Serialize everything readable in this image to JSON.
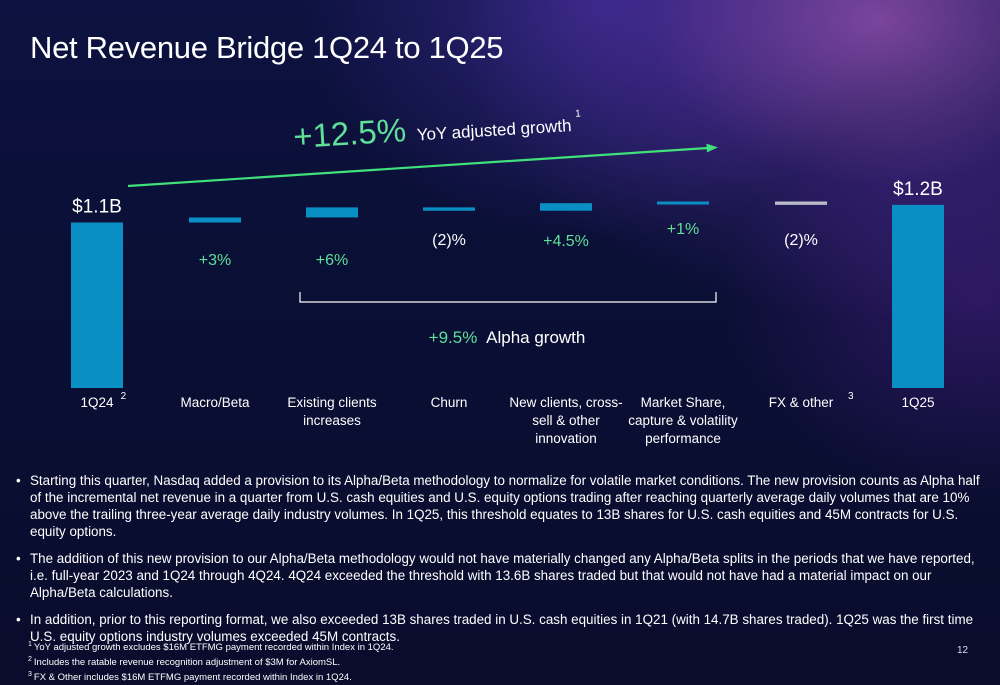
{
  "title": "Net Revenue Bridge 1Q24 to 1Q25",
  "growth": {
    "value_text": "+12.5%",
    "label_text": "YoY adjusted growth",
    "footnote_ref": "1"
  },
  "alpha": {
    "value_text": "+9.5%",
    "label_text": "Alpha growth"
  },
  "colors": {
    "bar": "#0a8fc5",
    "accent_green": "#40e07a",
    "green_text": "#5fdf97",
    "fx_bar": "#b9bcc8"
  },
  "chart_data": {
    "type": "bar",
    "subtype": "waterfall",
    "categories": [
      "1Q24",
      "Macro/Beta",
      "Existing clients increases",
      "Churn",
      "New clients, cross-sell & other innovation",
      "Market Share, capture & volatility performance",
      "FX & other",
      "1Q25"
    ],
    "percent_changes": [
      null,
      3,
      6,
      -2,
      4.5,
      1,
      -2,
      null
    ],
    "bars": [
      {
        "category": "1Q24",
        "category_lines": [
          "1Q24"
        ],
        "footnote": "2",
        "type": "total",
        "label": "$1.1B",
        "level_start": 0,
        "level_end": 100
      },
      {
        "category": "Macro/Beta",
        "category_lines": [
          "Macro/Beta"
        ],
        "footnote": "",
        "type": "delta",
        "label": "+3%",
        "level_start": 100,
        "level_end": 103
      },
      {
        "category": "Existing clients increases",
        "category_lines": [
          "Existing clients",
          "increases"
        ],
        "footnote": "",
        "type": "delta",
        "label": "+6%",
        "level_start": 103,
        "level_end": 109
      },
      {
        "category": "Churn",
        "category_lines": [
          "Churn"
        ],
        "footnote": "",
        "type": "delta",
        "label": "(2)%",
        "level_start": 109,
        "level_end": 107
      },
      {
        "category": "New clients, cross-sell & other innovation",
        "category_lines": [
          "New clients, cross-",
          "sell & other",
          "innovation"
        ],
        "footnote": "",
        "type": "delta",
        "label": "+4.5%",
        "level_start": 107,
        "level_end": 111.5
      },
      {
        "category": "Market Share, capture & volatility performance",
        "category_lines": [
          "Market Share,",
          "capture & volatility",
          "performance"
        ],
        "footnote": "",
        "type": "delta",
        "label": "+1%",
        "level_start": 111.5,
        "level_end": 112.5
      },
      {
        "category": "FX & other",
        "category_lines": [
          "FX & other"
        ],
        "footnote": "3",
        "type": "delta",
        "label": "(2)%",
        "level_start": 112.5,
        "level_end": 110.5
      },
      {
        "category": "1Q25",
        "category_lines": [
          "1Q25"
        ],
        "footnote": "",
        "type": "total",
        "label": "$1.2B",
        "level_start": 0,
        "level_end": 110.5
      }
    ],
    "total_labels": {
      "start": "$1.1B",
      "end": "$1.2B"
    },
    "xlabel": "",
    "ylabel": "",
    "grid": false,
    "legend": "none"
  },
  "bullets": [
    "Starting this quarter, Nasdaq added a provision to its Alpha/Beta methodology to normalize for volatile market conditions. The new provision counts as Alpha half of the incremental net revenue in a quarter from U.S. cash equities and U.S. equity options trading after reaching quarterly average daily volumes that are 10% above the trailing three-year average daily industry volumes. In 1Q25, this threshold equates to 13B shares for U.S. cash equities and 45M contracts for U.S. equity options.",
    "The addition of this new provision to our Alpha/Beta methodology would not have materially changed any Alpha/Beta splits in the periods that we have reported, i.e. full-year 2023 and 1Q24 through 4Q24. 4Q24 exceeded the threshold with 13.6B shares traded but that would not have had a material impact on our Alpha/Beta calculations.",
    "In addition, prior to this reporting format, we also exceeded 13B shares traded in U.S. cash equities in 1Q21 (with 14.7B shares traded). 1Q25 was the first time U.S. equity options industry volumes exceeded 45M contracts."
  ],
  "footnotes": [
    {
      "num": "1",
      "text": "YoY adjusted growth excludes $16M ETFMG payment recorded within Index in 1Q24."
    },
    {
      "num": "2",
      "text": "Includes the ratable revenue recognition adjustment of $3M for AxiomSL."
    },
    {
      "num": "3",
      "text": "FX & Other includes $16M ETFMG payment recorded within Index in 1Q24."
    }
  ],
  "page_number": "12"
}
